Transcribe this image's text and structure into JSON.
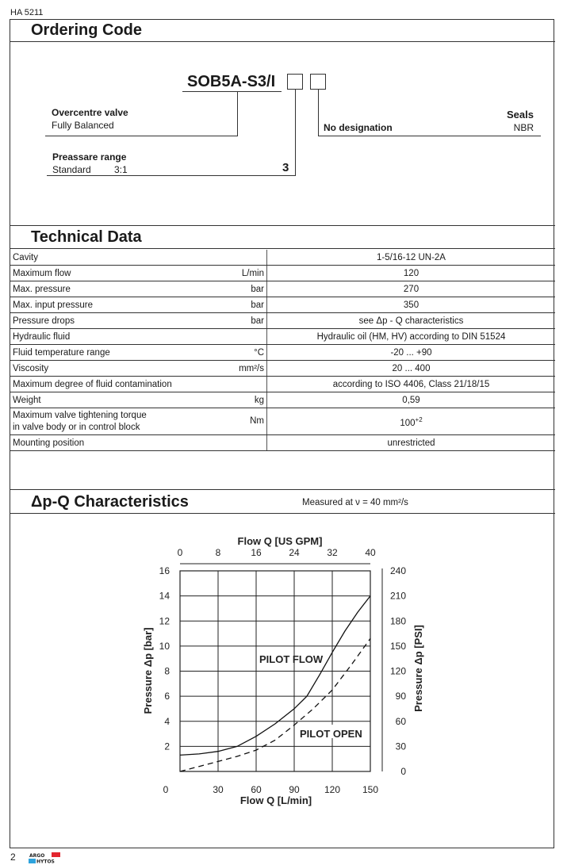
{
  "doc_id": "HA 5211",
  "ordering": {
    "title": "Ordering Code",
    "code": "SOB5A-S3/I",
    "valve_label": "Overcentre valve",
    "valve_value": "Fully Balanced",
    "range_label": "Preassare range",
    "range_value": "Standard",
    "range_ratio": "3:1",
    "range_code": "3",
    "seals_label": "Seals",
    "seals_designation": "No designation",
    "seals_value": "NBR"
  },
  "technical": {
    "title": "Technical Data",
    "rows": [
      {
        "label": "Cavity",
        "unit": "",
        "value": "1-5/16-12 UN-2A"
      },
      {
        "label": "Maximum flow",
        "unit": "L/min",
        "value": "120"
      },
      {
        "label": "Max. pressure",
        "unit": "bar",
        "value": "270"
      },
      {
        "label": "Max. input pressure",
        "unit": "bar",
        "value": "350"
      },
      {
        "label": "Pressure drops",
        "unit": "bar",
        "value": "see Δp - Q  characteristics"
      },
      {
        "label": "Hydraulic fluid",
        "unit": "",
        "value": "Hydraulic oil (HM, HV) according to DIN 51524"
      },
      {
        "label": "Fluid temperature range",
        "unit": "°C",
        "value": "-20 ... +90"
      },
      {
        "label": "Viscosity",
        "unit": "mm²/s",
        "value": "20 ... 400"
      },
      {
        "label": "Maximum degree of fluid contamination",
        "unit": "",
        "value": "according to ISO 4406, Class 21/18/15"
      },
      {
        "label": "Weight",
        "unit": "kg",
        "value": "0,59"
      },
      {
        "label": "Maximum valve tightening torque",
        "label2": "in valve body or in control block",
        "unit": "Nm",
        "value": "100",
        "value_sup": "+2"
      },
      {
        "label": "Mounting position",
        "unit": "",
        "value": "unrestricted"
      }
    ]
  },
  "characteristics": {
    "title": "Δp-Q Characteristics",
    "note": "Measured at ν = 40 mm²/s"
  },
  "chart_data": {
    "type": "line",
    "xlabel": "Flow Q [L/min]",
    "x2label": "Flow Q [US GPM]",
    "ylabel": "Pressure Δp [bar]",
    "y2label": "Pressure Δp [PSI]",
    "xlim": [
      0,
      150
    ],
    "ylim": [
      0,
      16
    ],
    "x_ticks": [
      "0",
      "30",
      "60",
      "90",
      "120",
      "150"
    ],
    "x2_ticks": [
      "0",
      "8",
      "16",
      "24",
      "32",
      "40"
    ],
    "y_ticks": [
      "2",
      "4",
      "6",
      "8",
      "10",
      "12",
      "14",
      "16"
    ],
    "y2_ticks": [
      "0",
      "30",
      "60",
      "90",
      "120",
      "150",
      "180",
      "210",
      "240"
    ],
    "grid": true,
    "series": [
      {
        "name": "PILOT FLOW",
        "style": "solid",
        "x": [
          0,
          15,
          30,
          45,
          60,
          75,
          90,
          100,
          110,
          120,
          130,
          140,
          150
        ],
        "y": [
          1.3,
          1.4,
          1.6,
          2.0,
          2.8,
          3.8,
          5.0,
          6.0,
          7.7,
          9.5,
          11.2,
          12.7,
          14.0
        ]
      },
      {
        "name": "PILOT OPEN",
        "style": "dashed",
        "x": [
          0,
          15,
          30,
          45,
          60,
          75,
          90,
          105,
          120,
          135,
          150
        ],
        "y": [
          0,
          0.4,
          0.8,
          1.2,
          1.7,
          2.5,
          3.7,
          5.0,
          6.5,
          8.5,
          10.6
        ]
      }
    ]
  },
  "footer": {
    "page": "2",
    "logo_text": "ARGO HYTOS",
    "logo_colors": [
      "#e3262f",
      "#2ea3dd"
    ]
  }
}
